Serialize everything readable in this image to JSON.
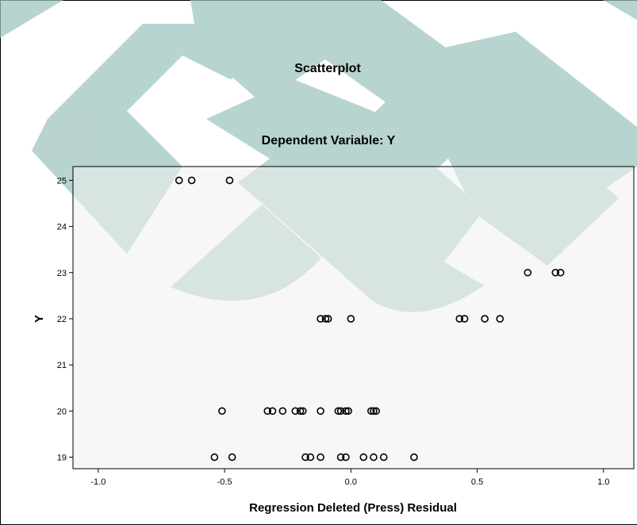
{
  "chart_data": {
    "type": "scatter",
    "title": "Scatterplot",
    "subtitle": "Dependent Variable: Y",
    "xlabel": "Regression Deleted (Press) Residual",
    "ylabel": "Y",
    "xlim": [
      -1.1,
      1.12
    ],
    "ylim": [
      18.75,
      25.3
    ],
    "x_ticks": [
      -1.0,
      -0.5,
      0.0,
      0.5,
      1.0
    ],
    "x_tick_labels": [
      "-1.0",
      "-0.5",
      "0.0",
      "0.5",
      "1.0"
    ],
    "y_ticks": [
      19,
      20,
      21,
      22,
      23,
      24,
      25
    ],
    "y_tick_labels": [
      "19",
      "20",
      "21",
      "22",
      "23",
      "24",
      "25"
    ],
    "grid": false,
    "plot_background": "#f0f0f0",
    "marker": "open-circle",
    "marker_color": "#000000",
    "points": [
      {
        "x": -0.68,
        "y": 25
      },
      {
        "x": -0.63,
        "y": 25
      },
      {
        "x": -0.48,
        "y": 25
      },
      {
        "x": 0.7,
        "y": 23
      },
      {
        "x": 0.81,
        "y": 23
      },
      {
        "x": 0.83,
        "y": 23
      },
      {
        "x": -0.12,
        "y": 22
      },
      {
        "x": -0.1,
        "y": 22
      },
      {
        "x": -0.09,
        "y": 22
      },
      {
        "x": 0.0,
        "y": 22
      },
      {
        "x": 0.43,
        "y": 22
      },
      {
        "x": 0.45,
        "y": 22
      },
      {
        "x": 0.53,
        "y": 22
      },
      {
        "x": 0.59,
        "y": 22
      },
      {
        "x": -0.51,
        "y": 20
      },
      {
        "x": -0.33,
        "y": 20
      },
      {
        "x": -0.31,
        "y": 20
      },
      {
        "x": -0.27,
        "y": 20
      },
      {
        "x": -0.22,
        "y": 20
      },
      {
        "x": -0.2,
        "y": 20
      },
      {
        "x": -0.19,
        "y": 20
      },
      {
        "x": -0.12,
        "y": 20
      },
      {
        "x": -0.05,
        "y": 20
      },
      {
        "x": -0.04,
        "y": 20
      },
      {
        "x": -0.02,
        "y": 20
      },
      {
        "x": -0.01,
        "y": 20
      },
      {
        "x": 0.08,
        "y": 20
      },
      {
        "x": 0.09,
        "y": 20
      },
      {
        "x": 0.1,
        "y": 20
      },
      {
        "x": -0.54,
        "y": 19
      },
      {
        "x": -0.47,
        "y": 19
      },
      {
        "x": -0.18,
        "y": 19
      },
      {
        "x": -0.16,
        "y": 19
      },
      {
        "x": -0.12,
        "y": 19
      },
      {
        "x": -0.04,
        "y": 19
      },
      {
        "x": -0.02,
        "y": 19
      },
      {
        "x": 0.05,
        "y": 19
      },
      {
        "x": 0.09,
        "y": 19
      },
      {
        "x": 0.13,
        "y": 19
      },
      {
        "x": 0.25,
        "y": 19
      }
    ]
  },
  "watermark_color": "#9ec4be"
}
